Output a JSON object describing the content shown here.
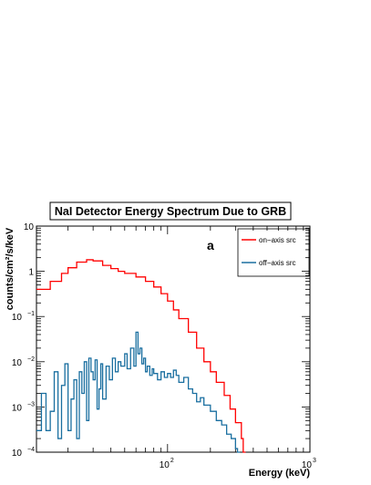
{
  "chart_data": {
    "type": "line",
    "title": "NaI Detector Energy Spectrum Due to GRB",
    "panel_label": "a",
    "xlabel": "Energy (keV)",
    "ylabel": "counts/cm²/s/keV",
    "x_scale": "log",
    "y_scale": "log",
    "xlim": [
      12,
      1000
    ],
    "ylim": [
      0.0001,
      10
    ],
    "x_tick_labels": [
      {
        "base": "10",
        "exp": "2",
        "value": 100
      },
      {
        "base": "10",
        "exp": "3",
        "value": 1000
      }
    ],
    "y_tick_labels": [
      {
        "base": "10",
        "exp": "",
        "value": 10
      },
      {
        "base": "1",
        "exp": "",
        "value": 1
      },
      {
        "base": "10",
        "exp": "−1",
        "value": 0.1
      },
      {
        "base": "10",
        "exp": "−2",
        "value": 0.01
      },
      {
        "base": "10",
        "exp": "−3",
        "value": 0.001
      },
      {
        "base": "10",
        "exp": "−4",
        "value": 0.0001
      }
    ],
    "grid": false,
    "legend_position": "top-right",
    "series": [
      {
        "name": "on−axis src",
        "color": "#ff0000",
        "points": [
          [
            12,
            0.4
          ],
          [
            15,
            0.6
          ],
          [
            18,
            0.9
          ],
          [
            20,
            1.2
          ],
          [
            23,
            1.6
          ],
          [
            27,
            1.8
          ],
          [
            30,
            1.7
          ],
          [
            35,
            1.35
          ],
          [
            40,
            1.15
          ],
          [
            45,
            1.0
          ],
          [
            50,
            0.9
          ],
          [
            60,
            0.75
          ],
          [
            70,
            0.6
          ],
          [
            80,
            0.45
          ],
          [
            90,
            0.32
          ],
          [
            100,
            0.22
          ],
          [
            110,
            0.14
          ],
          [
            120,
            0.09
          ],
          [
            140,
            0.045
          ],
          [
            160,
            0.02
          ],
          [
            180,
            0.01
          ],
          [
            200,
            0.006
          ],
          [
            220,
            0.0035
          ],
          [
            250,
            0.0018
          ],
          [
            275,
            0.0009
          ],
          [
            300,
            0.00045
          ],
          [
            330,
            0.0002
          ],
          [
            340,
            0.0001
          ]
        ]
      },
      {
        "name": "off−axis src",
        "color": "#1a6fa0",
        "points": [
          [
            12,
            0.0003
          ],
          [
            13,
            0.002
          ],
          [
            14,
            0.0003
          ],
          [
            15,
            0.0008
          ],
          [
            16,
            0.006
          ],
          [
            17,
            0.0002
          ],
          [
            18,
            0.003
          ],
          [
            19,
            0.009
          ],
          [
            20,
            0.0003
          ],
          [
            21,
            0.0015
          ],
          [
            22,
            0.004
          ],
          [
            23,
            0.0002
          ],
          [
            24,
            0.006
          ],
          [
            25,
            0.002
          ],
          [
            26,
            0.01
          ],
          [
            27,
            0.0005
          ],
          [
            28,
            0.012
          ],
          [
            29,
            0.006
          ],
          [
            30,
            0.004
          ],
          [
            31,
            0.011
          ],
          [
            32,
            0.0009
          ],
          [
            33,
            0.0025
          ],
          [
            34,
            0.009
          ],
          [
            35,
            0.0015
          ],
          [
            37,
            0.008
          ],
          [
            39,
            0.004
          ],
          [
            41,
            0.012
          ],
          [
            43,
            0.006
          ],
          [
            45,
            0.01
          ],
          [
            47,
            0.008
          ],
          [
            50,
            0.015
          ],
          [
            52,
            0.007
          ],
          [
            55,
            0.02
          ],
          [
            58,
            0.008
          ],
          [
            60,
            0.045
          ],
          [
            62,
            0.015
          ],
          [
            64,
            0.02
          ],
          [
            66,
            0.009
          ],
          [
            68,
            0.012
          ],
          [
            70,
            0.006
          ],
          [
            72,
            0.008
          ],
          [
            75,
            0.005
          ],
          [
            78,
            0.007
          ],
          [
            80,
            0.0055
          ],
          [
            85,
            0.004
          ],
          [
            90,
            0.006
          ],
          [
            95,
            0.0045
          ],
          [
            100,
            0.0055
          ],
          [
            105,
            0.0045
          ],
          [
            110,
            0.0065
          ],
          [
            115,
            0.005
          ],
          [
            120,
            0.0035
          ],
          [
            130,
            0.0045
          ],
          [
            140,
            0.0025
          ],
          [
            150,
            0.002
          ],
          [
            160,
            0.0013
          ],
          [
            170,
            0.0016
          ],
          [
            180,
            0.0011
          ],
          [
            200,
            0.0008
          ],
          [
            220,
            0.0005
          ],
          [
            240,
            0.0004
          ],
          [
            260,
            0.00025
          ],
          [
            280,
            0.0002
          ],
          [
            300,
            0.00012
          ],
          [
            310,
            0.0001
          ]
        ]
      }
    ]
  }
}
